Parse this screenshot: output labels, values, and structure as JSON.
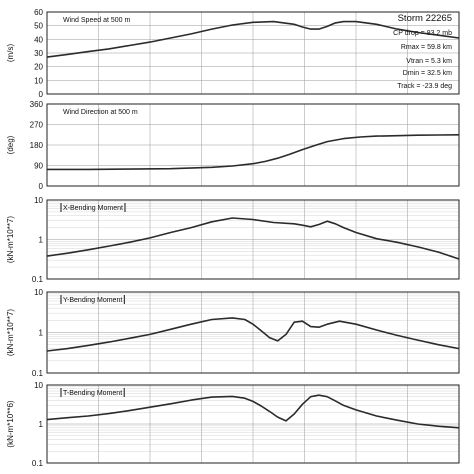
{
  "figure": {
    "storm_title": "Storm 22265",
    "parameters": [
      "CP drop =  83.2 mb",
      "Rmax =  59.8 km",
      "Vtran =    5.3 km",
      "Dmin =   32.5 km",
      "Track = -23.9 deg"
    ]
  },
  "chart_data": [
    {
      "type": "line",
      "title": "Wind Speed at 500 m",
      "ylabel": "(m/s)",
      "yscale": "linear",
      "ylim": [
        0,
        60
      ],
      "yticks": [
        0,
        10,
        20,
        30,
        40,
        50,
        60
      ],
      "yticklabels": [
        "0",
        "10",
        "20",
        "30",
        "40",
        "50",
        "60"
      ],
      "xlim": [
        0,
        100
      ],
      "grid": true,
      "x": [
        0,
        5,
        10,
        15,
        20,
        25,
        30,
        35,
        40,
        45,
        50,
        55,
        60,
        62,
        64,
        66,
        68,
        70,
        72,
        75,
        80,
        85,
        90,
        95,
        100
      ],
      "y": [
        27,
        29,
        31,
        33,
        35.5,
        38,
        41,
        44,
        47.5,
        50.5,
        52.5,
        53,
        51,
        49,
        47.5,
        47.5,
        49.5,
        52,
        53,
        53,
        51,
        47.5,
        45,
        43,
        41
      ]
    },
    {
      "type": "line",
      "title": "Wind Direction at 500 m",
      "ylabel": "(deg)",
      "yscale": "linear",
      "ylim": [
        0,
        360
      ],
      "yticks": [
        0,
        90,
        180,
        270,
        360
      ],
      "yticklabels": [
        "0",
        "90",
        "180",
        "270",
        "360"
      ],
      "xlim": [
        0,
        100
      ],
      "grid": true,
      "x": [
        0,
        10,
        20,
        30,
        40,
        45,
        50,
        53,
        56,
        59,
        62,
        65,
        68,
        72,
        76,
        80,
        85,
        90,
        95,
        100
      ],
      "y": [
        73,
        73,
        74,
        76,
        82,
        88,
        98,
        108,
        122,
        140,
        160,
        178,
        195,
        208,
        215,
        219,
        221,
        223,
        224,
        225
      ]
    },
    {
      "type": "line",
      "title": "X-Bending Moment",
      "ylabel": "(kN-m*10**7)",
      "yscale": "log",
      "ylim": [
        0.1,
        10
      ],
      "yticks": [
        0.1,
        1,
        10
      ],
      "yticklabels": [
        "0.1",
        "1",
        "10"
      ],
      "xlim": [
        0,
        100
      ],
      "grid": true,
      "x": [
        0,
        5,
        10,
        15,
        20,
        25,
        30,
        35,
        40,
        45,
        50,
        55,
        60,
        62,
        64,
        66,
        68,
        70,
        72,
        75,
        80,
        85,
        90,
        95,
        100
      ],
      "y": [
        0.38,
        0.45,
        0.55,
        0.68,
        0.85,
        1.1,
        1.5,
        2.0,
        2.8,
        3.5,
        3.2,
        2.7,
        2.5,
        2.3,
        2.1,
        2.4,
        2.9,
        2.5,
        2.0,
        1.5,
        1.05,
        0.85,
        0.65,
        0.48,
        0.32
      ]
    },
    {
      "type": "line",
      "title": "Y-Bending Moment",
      "ylabel": "(kN-m*10**7)",
      "yscale": "log",
      "ylim": [
        0.1,
        10
      ],
      "yticks": [
        0.1,
        1,
        10
      ],
      "yticklabels": [
        "0.1",
        "1",
        "10"
      ],
      "xlim": [
        0,
        100
      ],
      "grid": true,
      "x": [
        0,
        5,
        10,
        15,
        20,
        25,
        30,
        35,
        40,
        45,
        48,
        50,
        52,
        54,
        56,
        58,
        60,
        62,
        64,
        66,
        68,
        71,
        75,
        80,
        85,
        90,
        95,
        100
      ],
      "y": [
        0.35,
        0.4,
        0.48,
        0.58,
        0.72,
        0.9,
        1.2,
        1.6,
        2.1,
        2.3,
        2.1,
        1.6,
        1.1,
        0.75,
        0.62,
        0.9,
        1.8,
        1.9,
        1.4,
        1.35,
        1.6,
        1.9,
        1.6,
        1.15,
        0.85,
        0.65,
        0.5,
        0.4
      ]
    },
    {
      "type": "line",
      "title": "T-Bending Moment",
      "ylabel": "(kN-m*10**6)",
      "yscale": "log",
      "ylim": [
        0.1,
        10
      ],
      "yticks": [
        0.1,
        1,
        10
      ],
      "yticklabels": [
        "0.1",
        "1",
        "10"
      ],
      "xlim": [
        0,
        100
      ],
      "grid": true,
      "x": [
        0,
        5,
        10,
        15,
        20,
        25,
        30,
        35,
        40,
        45,
        48,
        50,
        52,
        54,
        56,
        58,
        60,
        62,
        64,
        66,
        68,
        70,
        72,
        75,
        80,
        85,
        90,
        95,
        100
      ],
      "y": [
        1.3,
        1.45,
        1.6,
        1.85,
        2.2,
        2.7,
        3.3,
        4.1,
        4.9,
        5.1,
        4.6,
        3.8,
        2.9,
        2.1,
        1.5,
        1.2,
        1.8,
        3.2,
        5.0,
        5.5,
        5.0,
        3.9,
        3.0,
        2.3,
        1.6,
        1.25,
        1.0,
        0.88,
        0.8
      ]
    }
  ]
}
